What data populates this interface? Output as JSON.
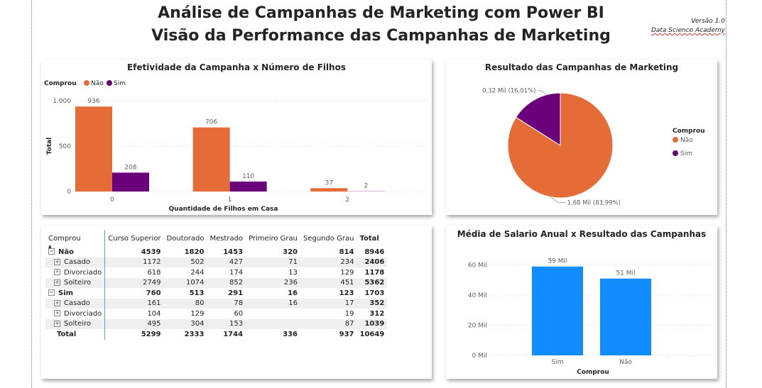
{
  "header": {
    "title_line1": "Análise de Campanhas de Marketing com Power BI",
    "title_line2": "Visão da Performance das Campanhas de Marketing",
    "version": "Versão 1.0",
    "org": "Data Science Academy"
  },
  "colors": {
    "nao": "#E66C37",
    "sim": "#6B007B",
    "blue": "#118DFF"
  },
  "chart_data": [
    {
      "type": "bar",
      "title": "Efetividade da Campanha x Número de Filhos",
      "legend_title": "Comprou",
      "categories": [
        "0",
        "1",
        "2"
      ],
      "series": [
        {
          "name": "Não",
          "values": [
            936,
            706,
            37
          ]
        },
        {
          "name": "Sim",
          "values": [
            208,
            110,
            2
          ]
        }
      ],
      "data_labels": [
        [
          "936",
          "706",
          "37"
        ],
        [
          "208",
          "110",
          "2"
        ]
      ],
      "xlabel": "Quantidade de Filhos em Casa",
      "ylabel": "Total",
      "yticks": [
        0,
        500,
        1000
      ],
      "ytick_labels": [
        "0",
        "500",
        "1.000"
      ],
      "ylim": [
        0,
        1000
      ],
      "legend_position": "top-left"
    },
    {
      "type": "pie",
      "title": "Resultado das Campanhas de Marketing",
      "legend_title": "Comprou",
      "slices": [
        {
          "name": "Não",
          "value": 1680,
          "label": "1,68 Mil (83,99%)"
        },
        {
          "name": "Sim",
          "value": 320,
          "label": "0,32 Mil (16,01%)"
        }
      ],
      "legend_position": "right"
    },
    {
      "type": "table",
      "columns": [
        "Comprou",
        "Curso Superior",
        "Doutorado",
        "Mestrado",
        "Primeiro Grau",
        "Segundo Grau",
        "Total"
      ],
      "rows": [
        {
          "label": "Não",
          "level": 0,
          "values": [
            "4539",
            "1820",
            "1453",
            "320",
            "814",
            "8946"
          ]
        },
        {
          "label": "Casado",
          "level": 1,
          "values": [
            "1172",
            "502",
            "427",
            "71",
            "234",
            "2406"
          ]
        },
        {
          "label": "Divorciado",
          "level": 1,
          "values": [
            "618",
            "244",
            "174",
            "13",
            "129",
            "1178"
          ]
        },
        {
          "label": "Solteiro",
          "level": 1,
          "values": [
            "2749",
            "1074",
            "852",
            "236",
            "451",
            "5362"
          ]
        },
        {
          "label": "Sim",
          "level": 0,
          "values": [
            "760",
            "513",
            "291",
            "16",
            "123",
            "1703"
          ]
        },
        {
          "label": "Casado",
          "level": 1,
          "values": [
            "161",
            "80",
            "78",
            "16",
            "17",
            "352"
          ]
        },
        {
          "label": "Divorciado",
          "level": 1,
          "values": [
            "104",
            "129",
            "60",
            "",
            "19",
            "312"
          ]
        },
        {
          "label": "Solteiro",
          "level": 1,
          "values": [
            "495",
            "304",
            "153",
            "",
            "87",
            "1039"
          ]
        },
        {
          "label": "Total",
          "level": -1,
          "values": [
            "5299",
            "2333",
            "1744",
            "336",
            "937",
            "10649"
          ]
        }
      ]
    },
    {
      "type": "bar",
      "title": "Média de Salario Anual x Resultado das Campanhas",
      "categories": [
        "Sim",
        "Não"
      ],
      "values": [
        59,
        51
      ],
      "data_labels": [
        "59 Mil",
        "51 Mil"
      ],
      "xlabel": "Comprou",
      "ylabel": "",
      "yticks": [
        0,
        20,
        40,
        60
      ],
      "ytick_labels": [
        "0 Mil",
        "20 Mil",
        "40 Mil",
        "60 Mil"
      ],
      "ylim": [
        0,
        65
      ]
    }
  ]
}
